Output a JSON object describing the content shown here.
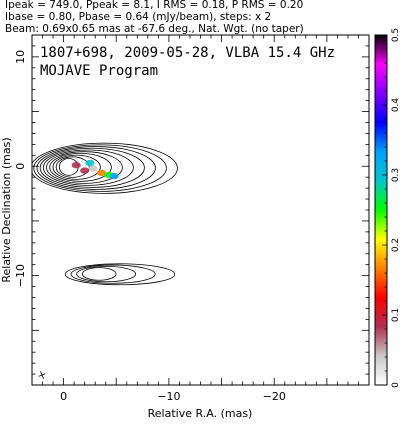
{
  "header": {
    "line1": "Ipeak = 749.0, Ppeak = 8.1, I RMS = 0.18, P RMS = 0.20",
    "line2": "Ibase = 0.80, Pbase = 0.64 (mJy/beam), steps: x 2",
    "line3": "Beam: 0.69x0.65 mas at -67.6 deg., Nat. Wgt. (no taper)"
  },
  "chart_data": {
    "type": "heatmap",
    "title": "1807+698, 2009-05-28, VLBA 15.4 GHz",
    "subtitle": "MOJAVE Program",
    "xlabel": "Relative R.A. (mas)",
    "ylabel": "Relative Declination (mas)",
    "xlim": [
      3,
      -29
    ],
    "ylim": [
      -20,
      12
    ],
    "x_ticks": [
      {
        "value": 0,
        "label": "0"
      },
      {
        "value": -10,
        "label": "−10"
      },
      {
        "value": -20,
        "label": "−20"
      }
    ],
    "y_ticks": [
      {
        "value": 10,
        "label": "10"
      },
      {
        "value": 0,
        "label": "0"
      },
      {
        "value": -10,
        "label": "−10"
      }
    ],
    "colorbar": {
      "min": 0,
      "max": 0.5,
      "ticks": [
        {
          "value": 0,
          "label": "0"
        },
        {
          "value": 0.1,
          "label": "0.1"
        },
        {
          "value": 0.2,
          "label": "0.2"
        },
        {
          "value": 0.3,
          "label": "0.3"
        },
        {
          "value": 0.4,
          "label": "0.4"
        },
        {
          "value": 0.5,
          "label": "0.5"
        }
      ],
      "colors": [
        "#ffffff",
        "#c8c8c8",
        "#b03050",
        "#ff0000",
        "#ff8000",
        "#ffff00",
        "#00ff00",
        "#00c8c8",
        "#00a0ff",
        "#0000ff",
        "#8000ff",
        "#ff00ff",
        "#000000"
      ]
    },
    "stokes_i_contours": [
      {
        "name": "core_jet",
        "center": [
          0,
          0
        ],
        "rx": 0.9,
        "ry": 0.8,
        "count": 10
      },
      {
        "name": "counter_image",
        "center": [
          -2.5,
          -9.8
        ],
        "rx": 1.6,
        "ry": 0.6,
        "count": 4
      }
    ],
    "polarization_patches": [
      {
        "x": -2.0,
        "y": -0.4,
        "value": 0.07
      },
      {
        "x": -2.8,
        "y": -0.2,
        "value": 0.05
      },
      {
        "x": -3.6,
        "y": -0.6,
        "value": 0.18
      },
      {
        "x": -4.3,
        "y": -0.8,
        "value": 0.27
      },
      {
        "x": -4.8,
        "y": -0.9,
        "value": 0.33
      },
      {
        "x": -1.2,
        "y": 0.1,
        "value": 0.09
      },
      {
        "x": -2.5,
        "y": 0.3,
        "value": 0.3
      }
    ],
    "beam": {
      "major": 0.69,
      "minor": 0.65,
      "pa": -67.6,
      "position": "bottom-left"
    }
  }
}
